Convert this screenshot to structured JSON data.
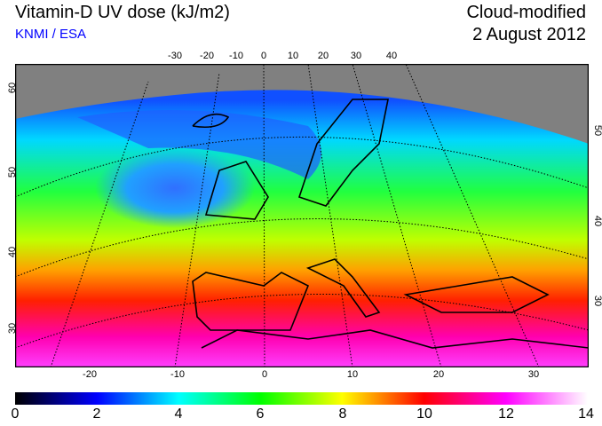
{
  "header": {
    "title": "Vitamin-D UV dose (kJ/m2)",
    "credit": "KNMI / ESA",
    "mode": "Cloud-modified",
    "date": "2 August 2012"
  },
  "map": {
    "top_lon_labels": [
      "-30",
      "-20",
      "-10",
      "0",
      "10",
      "20",
      "30",
      "40"
    ],
    "bottom_lon_labels": [
      "-20",
      "-10",
      "0",
      "10",
      "20",
      "30"
    ],
    "left_lat_labels": [
      "60",
      "50",
      "40",
      "30"
    ],
    "right_lat_labels": [
      "50",
      "40",
      "30"
    ],
    "no_data_color": "#808080"
  },
  "colorbar": {
    "labels": [
      "0",
      "2",
      "4",
      "6",
      "8",
      "10",
      "12",
      "14"
    ],
    "colors": [
      "#000000",
      "#0000ff",
      "#00ffff",
      "#00ff00",
      "#ffff00",
      "#ff0000",
      "#ff00ff",
      "#ffffff"
    ]
  }
}
